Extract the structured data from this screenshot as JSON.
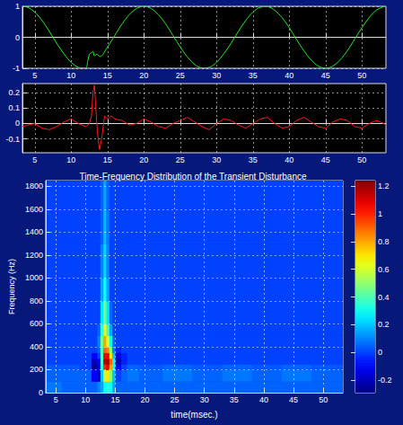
{
  "chart_data": [
    {
      "type": "line",
      "color": "#22ee22",
      "grid": true,
      "x": [
        3.3,
        4,
        5,
        6,
        7,
        8,
        9,
        10,
        11,
        12,
        12.3,
        12.5,
        12.8,
        13,
        13.2,
        13.5,
        14,
        15,
        16,
        17,
        18,
        19,
        20,
        21,
        22,
        23,
        24,
        25,
        26,
        27,
        28,
        29,
        30,
        31,
        32,
        33,
        34,
        35,
        36,
        37,
        38,
        39,
        40,
        41,
        42,
        43,
        44,
        45,
        46,
        47,
        48,
        49,
        50,
        51,
        52,
        53,
        53.3
      ],
      "values": [
        1,
        0.97,
        0.81,
        0.54,
        0.19,
        -0.19,
        -0.53,
        -0.81,
        -0.97,
        -0.99,
        -0.75,
        -0.55,
        -0.5,
        -0.45,
        -0.6,
        -0.55,
        -0.62,
        -0.31,
        0.06,
        0.43,
        0.73,
        0.93,
        1,
        0.93,
        0.73,
        0.43,
        0.06,
        -0.31,
        -0.64,
        -0.88,
        -0.99,
        -0.97,
        -0.81,
        -0.53,
        -0.19,
        0.19,
        0.54,
        0.81,
        0.97,
        0.99,
        0.87,
        0.64,
        0.31,
        -0.07,
        -0.43,
        -0.73,
        -0.93,
        -1,
        -0.93,
        -0.73,
        -0.43,
        -0.06,
        0.31,
        0.64,
        0.88,
        0.99,
        1
      ],
      "xlim": [
        3.3,
        53.3
      ],
      "xticks": [
        5,
        10,
        15,
        20,
        25,
        30,
        35,
        40,
        45,
        50
      ],
      "ylim": [
        -1,
        1
      ],
      "yticks": [
        -1,
        0,
        1
      ]
    },
    {
      "type": "line",
      "color": "#ff1a1a",
      "grid": true,
      "x": [
        3.3,
        4,
        5,
        6,
        7,
        8,
        9,
        10,
        11,
        12,
        12.5,
        12.8,
        13,
        13.2,
        13.4,
        13.6,
        13.9,
        14.2,
        14.6,
        15,
        15.5,
        16,
        17,
        18,
        19,
        20,
        21,
        22,
        23,
        24,
        25,
        26,
        27,
        28,
        29,
        30,
        31,
        32,
        33,
        34,
        35,
        36,
        37,
        38,
        39,
        40,
        41,
        42,
        43,
        44,
        45,
        46,
        47,
        48,
        49,
        50,
        51,
        52,
        53,
        53.3
      ],
      "values": [
        -0.02,
        -0.01,
        0,
        -0.03,
        -0.04,
        -0.02,
        0.01,
        0.03,
        0,
        -0.02,
        0,
        0.05,
        0.2,
        0.25,
        0.1,
        -0.05,
        -0.17,
        -0.1,
        0.05,
        0.03,
        0.05,
        0.03,
        0.02,
        -0.01,
        0,
        0.03,
        0.01,
        -0.02,
        -0.03,
        0,
        0.02,
        0.04,
        0.01,
        -0.02,
        -0.04,
        0,
        0.03,
        0.02,
        -0.01,
        -0.03,
        0,
        0.03,
        0.04,
        0,
        -0.03,
        -0.02,
        0.02,
        0.04,
        0.01,
        -0.02,
        -0.03,
        0.01,
        0.03,
        0.02,
        -0.02,
        -0.03,
        0,
        0.02,
        0,
        -0.01
      ],
      "xlim": [
        3.3,
        53.3
      ],
      "xticks": [
        5,
        10,
        15,
        20,
        25,
        30,
        35,
        40,
        45,
        50
      ],
      "ylim": [
        -0.19,
        0.26
      ],
      "yticks": [
        -0.1,
        0,
        0.1,
        0.2
      ]
    },
    {
      "type": "heatmap",
      "grid": true,
      "title": "Time-Frequency Distribution of the Transient Disturbance",
      "x_label": "time(msec.)",
      "y_label": "Frequency (Hz)",
      "x_bins": [
        3.3,
        6,
        9,
        11,
        12,
        12.5,
        13,
        13.5,
        14,
        14.5,
        15,
        16,
        17,
        19,
        23,
        28,
        33,
        38,
        43,
        48,
        53.3
      ],
      "y_bins": [
        0,
        100,
        200,
        250,
        300,
        350,
        400,
        500,
        600,
        800,
        1000,
        1300,
        1600,
        1850
      ],
      "cells": [
        [
          0.08,
          0.05,
          0.05,
          0.05,
          0.1,
          0.15,
          0.3,
          0.35,
          0.3,
          0.15,
          0.05,
          0.05,
          0.05,
          0.05,
          0.05,
          0.05,
          0.05,
          0.05,
          0.05,
          0.05
        ],
        [
          0.05,
          0.05,
          0.05,
          -0.1,
          -0.2,
          0.2,
          0.6,
          0.7,
          0.5,
          0.2,
          0,
          0.05,
          0.08,
          0.05,
          0.08,
          0.05,
          0.08,
          0.05,
          0.08,
          0.05
        ],
        [
          0.03,
          0.03,
          0,
          -0.25,
          -0.15,
          0.35,
          1,
          1.1,
          0.8,
          0.3,
          -0.1,
          0,
          0.05,
          0.03,
          0.05,
          0.03,
          0.05,
          0.03,
          0.05,
          0.03
        ],
        [
          0,
          0,
          0,
          -0.2,
          -0.1,
          0.4,
          1.15,
          1.2,
          0.9,
          0.3,
          -0.2,
          -0.05,
          0,
          0,
          0,
          0,
          0,
          0,
          0,
          0
        ],
        [
          0,
          0,
          0,
          -0.1,
          0,
          0.4,
          1.05,
          1.1,
          0.7,
          0.2,
          -0.15,
          -0.05,
          0,
          0,
          0,
          0,
          0,
          0,
          0,
          0
        ],
        [
          0,
          0,
          0,
          0,
          0.05,
          0.4,
          0.9,
          0.85,
          0.5,
          0.1,
          -0.05,
          0,
          0,
          0,
          0,
          0,
          0,
          0,
          0,
          0
        ],
        [
          0,
          0,
          0,
          0,
          0.1,
          0.45,
          0.8,
          0.6,
          0.3,
          0.05,
          0,
          0,
          0,
          0,
          0,
          0,
          0,
          0,
          0,
          0
        ],
        [
          0,
          0,
          0,
          0,
          0.05,
          0.35,
          0.65,
          0.4,
          0.15,
          0,
          0,
          0,
          0,
          0,
          0,
          0,
          0,
          0,
          0,
          0
        ],
        [
          0,
          0,
          0,
          0,
          0,
          0.25,
          0.45,
          0.25,
          0.05,
          0,
          0,
          0,
          0,
          0,
          0,
          0,
          0,
          0,
          0,
          0
        ],
        [
          0,
          0,
          0,
          0,
          0,
          0.15,
          0.3,
          0.15,
          0,
          0,
          0,
          0,
          0,
          0,
          0,
          0,
          0,
          0,
          0,
          0
        ],
        [
          0,
          0,
          0,
          0,
          0,
          0.1,
          0.22,
          0.1,
          0,
          0,
          0,
          0,
          0,
          0,
          0,
          0,
          0,
          0,
          0,
          0
        ],
        [
          0,
          0,
          0,
          0,
          0,
          0.05,
          0.18,
          0.08,
          0,
          0,
          0,
          0,
          0,
          0,
          0,
          0,
          0,
          0,
          0,
          0
        ],
        [
          0,
          0,
          0,
          0,
          0,
          0.05,
          0.15,
          0.05,
          0,
          0,
          0,
          0,
          0,
          0,
          0,
          0,
          0,
          0,
          0,
          0
        ]
      ],
      "xlim": [
        3.3,
        53.3
      ],
      "xticks": [
        5,
        10,
        15,
        20,
        25,
        30,
        35,
        40,
        45,
        50
      ],
      "ylim": [
        0,
        1850
      ],
      "yticks": [
        0,
        200,
        400,
        600,
        800,
        1000,
        1200,
        1400,
        1600,
        1800
      ],
      "color_range": [
        -0.29,
        1.24
      ],
      "color_ticks": [
        -0.2,
        0,
        0.2,
        0.4,
        0.6,
        0.8,
        1,
        1.2
      ]
    }
  ]
}
